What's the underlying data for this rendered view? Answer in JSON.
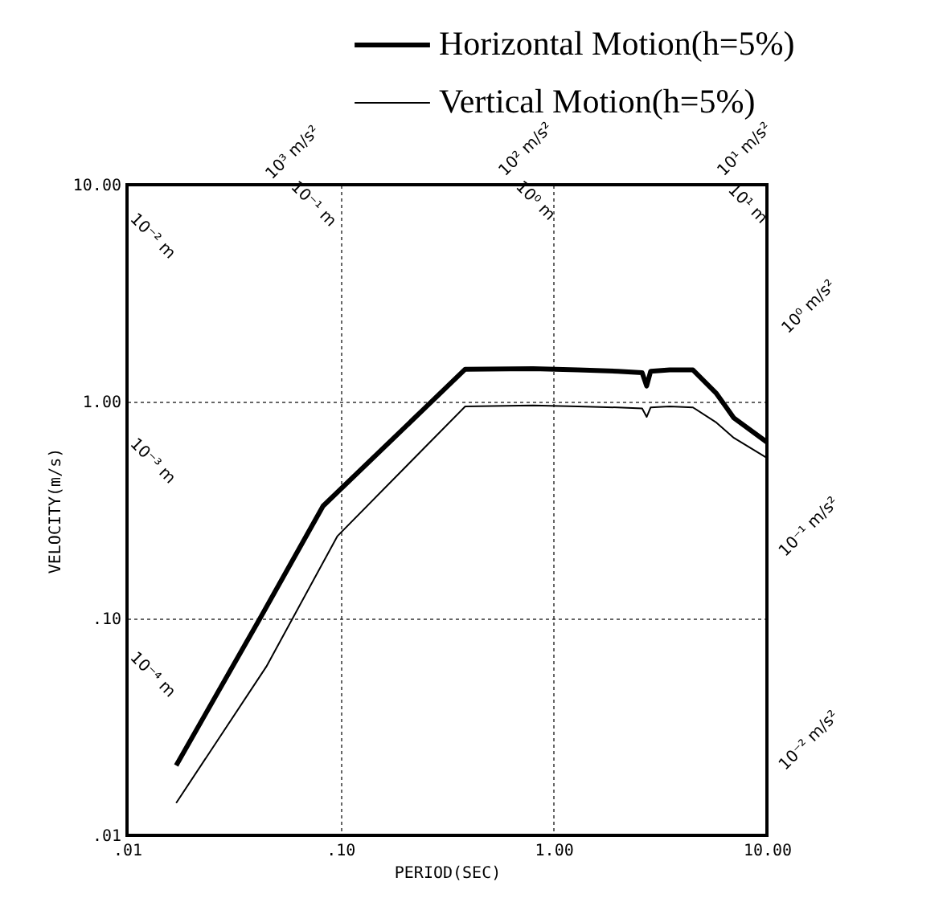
{
  "chart_data": {
    "type": "line",
    "xlabel": "PERIOD(SEC)",
    "ylabel": "VELOCITY(m/s)",
    "log": "xy",
    "grid": true,
    "legend": "top right",
    "line_style": "solid",
    "marker": "none",
    "xlim": [
      0.01,
      10
    ],
    "xticks": [
      {
        "value": 0.01,
        "label": ".01"
      },
      {
        "value": 0.1,
        "label": ".10"
      },
      {
        "value": 1,
        "label": "1.00"
      },
      {
        "value": 10,
        "label": "10.00"
      }
    ],
    "ylim": [
      0.01,
      10
    ],
    "yticks": [
      {
        "value": 0.01,
        "label": ".01"
      },
      {
        "value": 0.1,
        "label": ".10"
      },
      {
        "value": 1,
        "label": "1.00"
      },
      {
        "value": 10,
        "label": "10.00"
      }
    ],
    "annotations": [
      "10³ m/s²",
      "10² m/s²",
      "10¹ m/s²",
      "10⁰ m/s²",
      "10⁻¹ m/s²",
      "10⁻² m/s²",
      "10⁻¹ m",
      "10⁰ m",
      "10¹ m",
      "10⁻² m",
      "10⁻³ m",
      "10⁻⁴ m"
    ],
    "series": [
      {
        "name": "Horizontal Motion(h=5%)",
        "color": "#000000",
        "x": [
          0.017,
          0.042,
          0.083,
          0.385,
          0.8,
          1.3,
          2.0,
          2.6,
          2.73,
          2.85,
          3.5,
          4.5,
          5.8,
          7.0,
          10
        ],
        "values": [
          0.021,
          0.1,
          0.33,
          1.41,
          1.42,
          1.4,
          1.38,
          1.36,
          1.18,
          1.38,
          1.4,
          1.4,
          1.09,
          0.84,
          0.65
        ]
      },
      {
        "name": "Vertical Motion(h=5%)",
        "color": "#000000",
        "x": [
          0.017,
          0.045,
          0.097,
          0.385,
          0.8,
          1.3,
          2.0,
          2.6,
          2.73,
          2.85,
          3.5,
          4.5,
          5.8,
          7.0,
          10
        ],
        "values": [
          0.0141,
          0.06,
          0.24,
          0.95,
          0.96,
          0.95,
          0.94,
          0.93,
          0.85,
          0.94,
          0.95,
          0.94,
          0.8,
          0.68,
          0.55
        ]
      }
    ]
  }
}
